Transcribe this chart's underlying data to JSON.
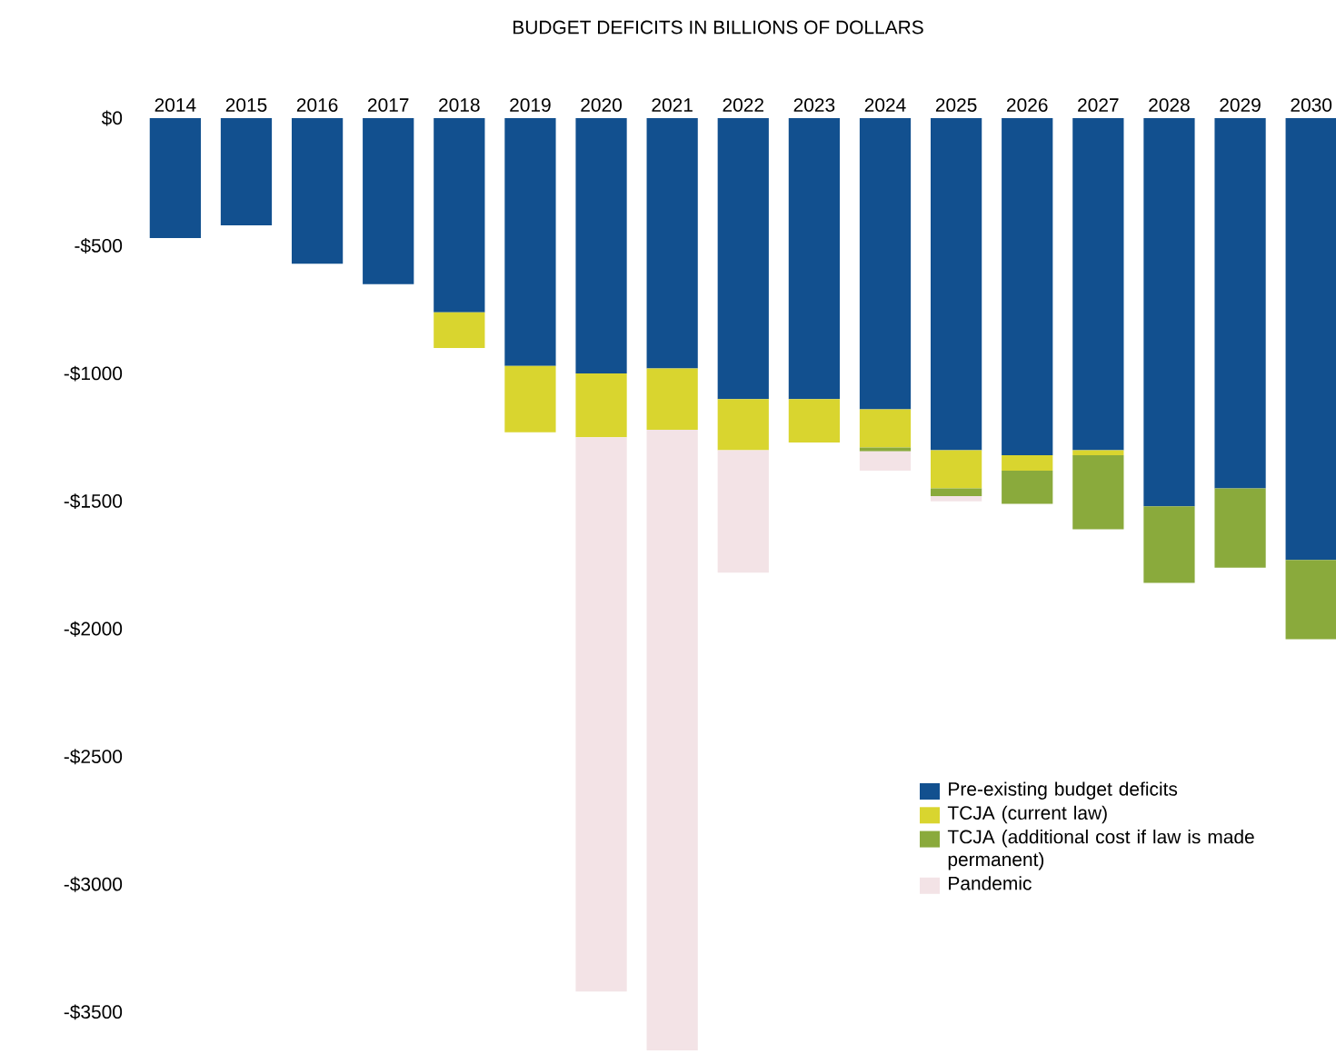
{
  "chart_data": {
    "type": "bar",
    "stacked": true,
    "title": "BUDGET DEFICITS IN BILLIONS OF DOLLARS",
    "categories": [
      "2014",
      "2015",
      "2016",
      "2017",
      "2018",
      "2019",
      "2020",
      "2021",
      "2022",
      "2023",
      "2024",
      "2025",
      "2026",
      "2027",
      "2028",
      "2029",
      "2030"
    ],
    "series": [
      {
        "name": "Pre-existing budget deficits",
        "color": "#12508f",
        "values": [
          -470,
          -420,
          -570,
          -650,
          -760,
          -970,
          -1000,
          -980,
          -1100,
          -1100,
          -1140,
          -1300,
          -1320,
          -1300,
          -1520,
          -1450,
          -1730
        ]
      },
      {
        "name": "TCJA (current law)",
        "color": "#d9d52f",
        "values": [
          null,
          null,
          null,
          null,
          -140,
          -260,
          -250,
          -240,
          -200,
          -170,
          -150,
          -150,
          -60,
          -20,
          null,
          null,
          null
        ]
      },
      {
        "name": "TCJA (additional cost if law is made permanent)",
        "color": "#8aaa3c",
        "values": [
          null,
          null,
          null,
          null,
          null,
          null,
          null,
          null,
          null,
          null,
          -15,
          -30,
          -130,
          -290,
          -300,
          -310,
          -310
        ]
      },
      {
        "name": "Pandemic",
        "color": "#f3e3e6",
        "values": [
          null,
          null,
          null,
          null,
          null,
          null,
          -2170,
          -2430,
          -480,
          null,
          -75,
          -20,
          null,
          null,
          null,
          null,
          null
        ]
      }
    ],
    "ylim": [
      -3650,
      0
    ],
    "yticks": [
      {
        "value": 0,
        "label": "$0"
      },
      {
        "value": -500,
        "label": "-$500"
      },
      {
        "value": -1000,
        "label": "-$1000"
      },
      {
        "value": -1500,
        "label": "-$1500"
      },
      {
        "value": -2000,
        "label": "-$2000"
      },
      {
        "value": -2500,
        "label": "-$2500"
      },
      {
        "value": -3000,
        "label": "-$3000"
      },
      {
        "value": -3500,
        "label": "-$3500"
      }
    ],
    "grid": false,
    "legend": "bottom right"
  }
}
